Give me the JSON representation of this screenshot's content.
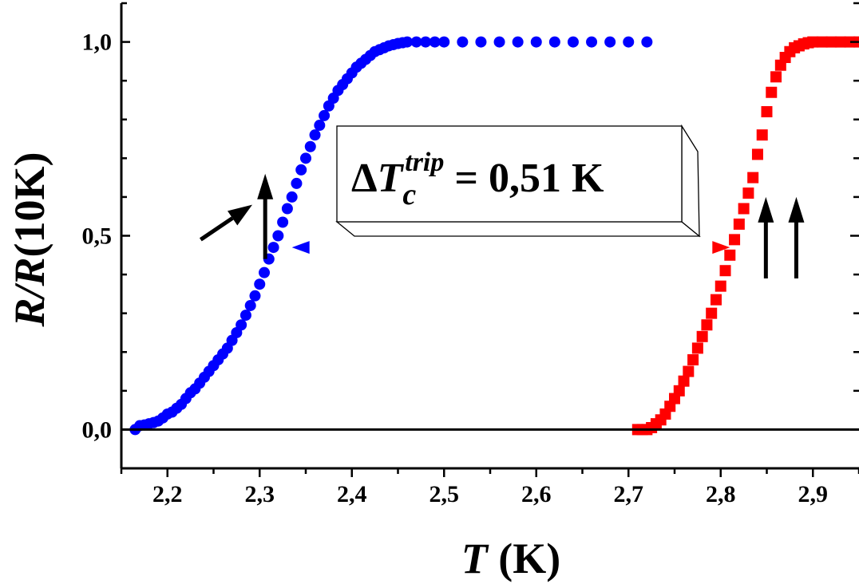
{
  "chart_data": {
    "type": "scatter",
    "xlabel": {
      "var": "T",
      "unit": " (K)"
    },
    "ylabel": {
      "var": "R/R",
      "rest": "(10K)"
    },
    "xlim": [
      2.15,
      2.95
    ],
    "ylim": [
      -0.1,
      1.1
    ],
    "x_ticks": [
      "2,2",
      "2,3",
      "2,4",
      "2,5",
      "2,6",
      "2,7",
      "2,8",
      "2,9"
    ],
    "y_ticks": [
      "0,0",
      "0,5",
      "1,0"
    ],
    "x_tick_values": [
      2.2,
      2.3,
      2.4,
      2.5,
      2.6,
      2.7,
      2.8,
      2.9
    ],
    "y_tick_values": [
      0.0,
      0.5,
      1.0
    ],
    "zero_line": true,
    "series": [
      {
        "marker": "circle",
        "color": "#0000FF",
        "x": [
          2.165,
          2.17,
          2.175,
          2.18,
          2.185,
          2.19,
          2.195,
          2.2,
          2.205,
          2.21,
          2.215,
          2.22,
          2.225,
          2.23,
          2.235,
          2.24,
          2.245,
          2.25,
          2.255,
          2.26,
          2.265,
          2.27,
          2.275,
          2.28,
          2.285,
          2.29,
          2.295,
          2.3,
          2.305,
          2.31,
          2.315,
          2.32,
          2.325,
          2.33,
          2.335,
          2.34,
          2.345,
          2.35,
          2.355,
          2.36,
          2.365,
          2.37,
          2.375,
          2.38,
          2.385,
          2.39,
          2.395,
          2.4,
          2.405,
          2.41,
          2.415,
          2.42,
          2.425,
          2.43,
          2.435,
          2.44,
          2.445,
          2.45,
          2.455,
          2.46,
          2.47,
          2.48,
          2.49,
          2.5,
          2.52,
          2.54,
          2.56,
          2.58,
          2.6,
          2.62,
          2.64,
          2.66,
          2.68,
          2.7,
          2.72
        ],
        "y": [
          0.0,
          0.01,
          0.012,
          0.015,
          0.018,
          0.022,
          0.03,
          0.04,
          0.045,
          0.055,
          0.065,
          0.08,
          0.095,
          0.105,
          0.12,
          0.135,
          0.15,
          0.165,
          0.18,
          0.195,
          0.21,
          0.23,
          0.25,
          0.27,
          0.295,
          0.32,
          0.345,
          0.375,
          0.405,
          0.44,
          0.47,
          0.5,
          0.535,
          0.57,
          0.6,
          0.635,
          0.67,
          0.7,
          0.73,
          0.76,
          0.785,
          0.81,
          0.835,
          0.855,
          0.875,
          0.89,
          0.905,
          0.92,
          0.935,
          0.945,
          0.955,
          0.965,
          0.975,
          0.98,
          0.985,
          0.99,
          0.993,
          0.996,
          0.998,
          1.0,
          1.0,
          1.0,
          1.0,
          1.0,
          1.0,
          1.0,
          1.0,
          1.0,
          1.0,
          1.0,
          1.0,
          1.0,
          1.0,
          1.0,
          1.0
        ]
      },
      {
        "marker": "square",
        "color": "#FF0000",
        "x": [
          2.71,
          2.715,
          2.72,
          2.725,
          2.73,
          2.735,
          2.74,
          2.745,
          2.75,
          2.755,
          2.76,
          2.765,
          2.77,
          2.775,
          2.78,
          2.785,
          2.79,
          2.795,
          2.8,
          2.805,
          2.81,
          2.815,
          2.82,
          2.825,
          2.83,
          2.835,
          2.84,
          2.845,
          2.85,
          2.855,
          2.86,
          2.865,
          2.87,
          2.875,
          2.88,
          2.885,
          2.89,
          2.895,
          2.9,
          2.91,
          2.92,
          2.93,
          2.94,
          2.95
        ],
        "y": [
          0.0,
          0.0,
          0.0,
          0.005,
          0.015,
          0.025,
          0.04,
          0.06,
          0.08,
          0.1,
          0.125,
          0.15,
          0.18,
          0.21,
          0.24,
          0.27,
          0.3,
          0.335,
          0.37,
          0.41,
          0.45,
          0.49,
          0.53,
          0.57,
          0.61,
          0.65,
          0.71,
          0.76,
          0.82,
          0.87,
          0.91,
          0.94,
          0.96,
          0.975,
          0.985,
          0.99,
          0.995,
          0.998,
          1.0,
          1.0,
          1.0,
          1.0,
          1.0,
          1.0
        ]
      }
    ],
    "annotations": {
      "delta_label": {
        "prefix": "Δ",
        "var": "T",
        "sub": "c",
        "sup": "trip",
        "value": " = 0,51 K"
      },
      "double_arrow": {
        "x1": 2.335,
        "x2": 2.81,
        "y": 0.47
      },
      "black_arrows": [
        {
          "x": 2.306,
          "y_from": 0.44,
          "y_to": 0.66
        },
        {
          "x": 2.849,
          "y_from": 0.39,
          "y_to": 0.6
        },
        {
          "x": 2.882,
          "y_from": 0.39,
          "y_to": 0.6
        }
      ],
      "diagonal_arrow": {
        "x1": 2.236,
        "y1": 0.49,
        "x2": 2.292,
        "y2": 0.58
      }
    }
  }
}
